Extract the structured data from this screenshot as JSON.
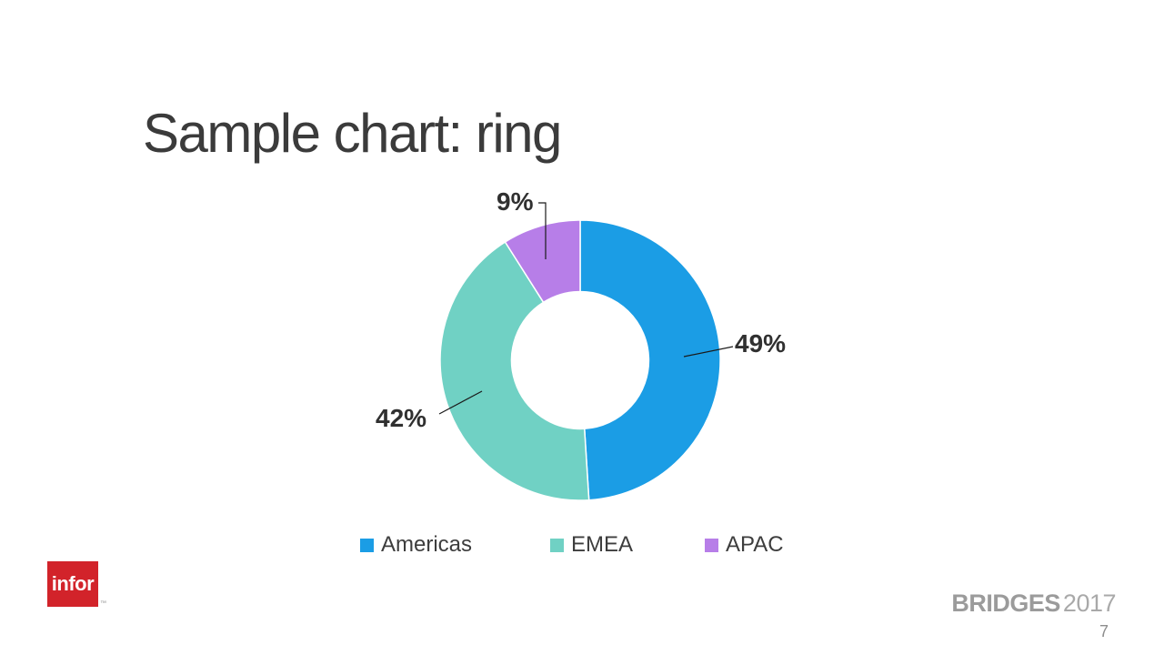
{
  "slide": {
    "title": "Sample chart: ring",
    "page_number": "7",
    "footer_brand": {
      "bold": "BRIDGES",
      "year": "2017"
    },
    "logo": {
      "text": "infor",
      "tm": "™",
      "bg_color": "#d2232a"
    }
  },
  "chart_data": {
    "type": "pie",
    "subtype": "donut",
    "title": "Sample chart: ring",
    "categories": [
      "Americas",
      "EMEA",
      "APAC"
    ],
    "values": [
      49,
      42,
      9
    ],
    "unit": "percent",
    "series": [
      {
        "name": "Americas",
        "value": 49,
        "pct_label": "49%",
        "color": "#1b9de5"
      },
      {
        "name": "EMEA",
        "value": 42,
        "pct_label": "42%",
        "color": "#70d1c4"
      },
      {
        "name": "APAC",
        "value": 9,
        "pct_label": "9%",
        "color": "#b77ee8"
      }
    ],
    "start_angle_deg": 0,
    "direction": "clockwise",
    "inner_radius_ratio": 0.49,
    "legend_position": "bottom",
    "data_labels": "outside-with-leader-lines",
    "segment_gap_color": "#ffffff"
  }
}
